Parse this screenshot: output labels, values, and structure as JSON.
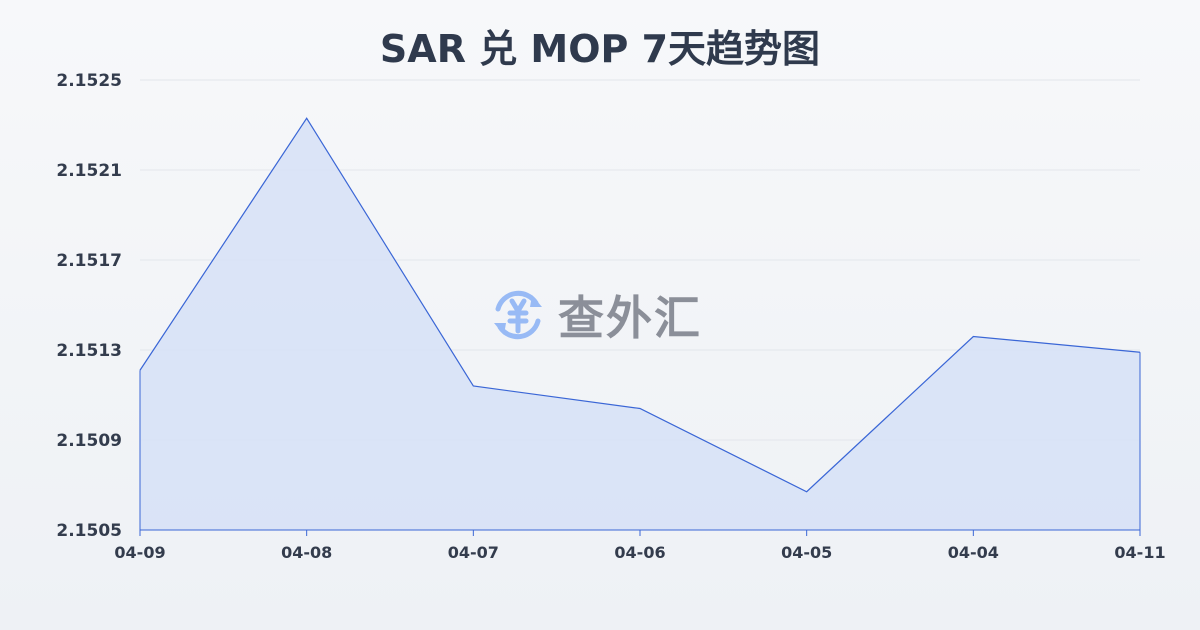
{
  "chart_data": {
    "type": "area",
    "title": "SAR 兑 MOP 7天趋势图",
    "categories": [
      "04-09",
      "04-08",
      "04-07",
      "04-06",
      "04-05",
      "04-04",
      "04-11"
    ],
    "values": [
      2.15121,
      2.15233,
      2.15114,
      2.15104,
      2.15067,
      2.15136,
      2.15129
    ],
    "yticks": [
      "2.1505",
      "2.1509",
      "2.1513",
      "2.1517",
      "2.1521",
      "2.1525"
    ],
    "ylim": [
      2.1505,
      2.1525
    ],
    "grid": true,
    "line_color": "#3a66d6",
    "fill_color": "#d6e1f7"
  },
  "watermark": {
    "text": "查外汇",
    "icon": "yen-exchange-icon",
    "icon_color": "#8fb4f5"
  }
}
